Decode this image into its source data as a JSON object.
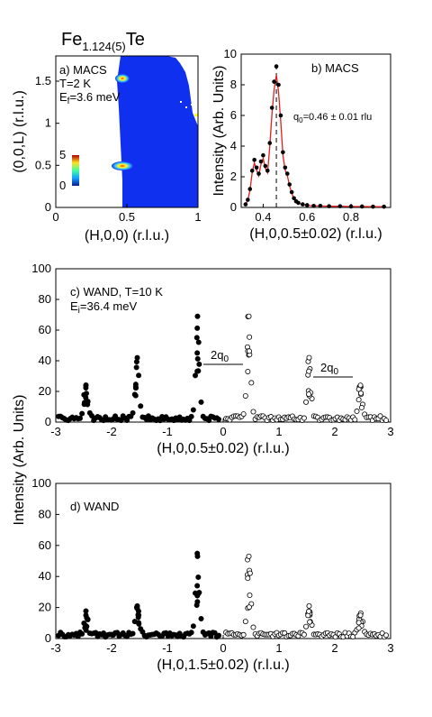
{
  "figure": {
    "title_main": "Fe",
    "title_sub": "1.124(5)",
    "title_tail": "Te",
    "shared_ylabel": "Intensity (Arb. Units)"
  },
  "panel_a": {
    "label": "a) MACS",
    "temp": "T=2 K",
    "ef_pre": "E",
    "ef_sub": "f",
    "ef_post": "=3.6 meV",
    "xlabel": "(H,0,0) (r.l.u.)",
    "ylabel": "(0,0,L) (r.l.u.)",
    "colorbar_max": "5",
    "colorbar_min": "0",
    "xticks": [
      "0",
      "0.5",
      "1"
    ],
    "yticks": [
      "0",
      "0.5",
      "1",
      "1.5"
    ],
    "colors": {
      "background": "#1030f0",
      "peak_outer": "#30c0ff",
      "peak_mid": "#ffff20",
      "peak_core": "#ff3010"
    }
  },
  "panel_b": {
    "label": "b) MACS",
    "q_pre": "q",
    "q_sub": "0",
    "q_post": "=0.46 ± 0.01 rlu",
    "xlabel": "(H,0,0.5±0.02) (r.l.u.)",
    "ylabel": "Intensity (Arb. Units)",
    "xticks": [
      "0.4",
      "0.6",
      "0.8"
    ],
    "yticks": [
      "0",
      "2",
      "4",
      "6",
      "8",
      "10"
    ],
    "fit_color": "#e02020"
  },
  "panel_c": {
    "label": "c) WAND, T=10 K",
    "ei_pre": "E",
    "ei_sub": "i",
    "ei_post": "=36.4 meV",
    "q_ann": "2q",
    "q_ann_sub": "0",
    "xlabel": "(H,0,0.5±0.02) (r.l.u.)",
    "xticks": [
      "-3",
      "-2",
      "-1",
      "0",
      "1",
      "2",
      "3"
    ],
    "yticks": [
      "0",
      "20",
      "40",
      "60",
      "80",
      "100"
    ]
  },
  "panel_d": {
    "label": "d) WAND",
    "xlabel": "(H,0,1.5±0.02) (r.l.u.)",
    "xticks": [
      "-3",
      "-2",
      "-1",
      "0",
      "1",
      "2",
      "3"
    ],
    "yticks": [
      "0",
      "20",
      "40",
      "60",
      "80",
      "100"
    ]
  },
  "chart_data": [
    {
      "type": "heatmap",
      "title": "a) MACS",
      "xlabel": "(H,0,0) (r.l.u.)",
      "ylabel": "(0,0,L) (r.l.u.)",
      "xlim": [
        0,
        1
      ],
      "ylim": [
        0,
        1.8
      ],
      "color_range": [
        0,
        5
      ],
      "peaks": [
        {
          "h": 0.46,
          "l": 0.5,
          "intensity": 5
        },
        {
          "h": 0.46,
          "l": 1.5,
          "intensity": 3
        }
      ]
    },
    {
      "type": "scatter",
      "title": "b) MACS",
      "xlabel": "(H,0,0.5±0.02) (r.l.u.)",
      "ylabel": "Intensity (Arb. Units)",
      "xlim": [
        0.3,
        0.98
      ],
      "ylim": [
        0,
        10
      ],
      "q0_line": 0.46,
      "x": [
        0.32,
        0.33,
        0.34,
        0.35,
        0.36,
        0.37,
        0.38,
        0.39,
        0.4,
        0.41,
        0.42,
        0.43,
        0.44,
        0.45,
        0.46,
        0.47,
        0.48,
        0.49,
        0.5,
        0.51,
        0.52,
        0.53,
        0.54,
        0.55,
        0.56,
        0.58,
        0.6,
        0.63,
        0.66,
        0.7,
        0.75,
        0.8,
        0.85,
        0.9,
        0.95
      ],
      "y": [
        0.2,
        0.5,
        1.2,
        2.4,
        3.1,
        2.6,
        2.2,
        3.0,
        3.4,
        2.7,
        2.4,
        4.2,
        6.5,
        8.2,
        9.2,
        8.0,
        6.0,
        3.6,
        2.6,
        2.2,
        1.5,
        1.0,
        0.6,
        0.4,
        0.3,
        0.2,
        0.15,
        0.1,
        0.1,
        0.08,
        0.08,
        0.06,
        0.06,
        0.05,
        0.05
      ]
    },
    {
      "type": "scatter",
      "title": "c) WAND, T=10 K",
      "xlabel": "(H,0,0.5±0.02) (r.l.u.)",
      "ylabel": "Intensity (Arb. Units)",
      "xlim": [
        -3,
        3
      ],
      "ylim": [
        0,
        100
      ],
      "series": [
        {
          "marker": "filled",
          "peaks": [
            {
              "x": -2.46,
              "height": 24
            },
            {
              "x": -1.54,
              "height": 42
            },
            {
              "x": -0.46,
              "height": 69
            }
          ]
        },
        {
          "marker": "open",
          "peaks": [
            {
              "x": 0.46,
              "height": 69
            },
            {
              "x": 1.54,
              "height": 42
            },
            {
              "x": 2.46,
              "height": 24
            }
          ]
        }
      ]
    },
    {
      "type": "scatter",
      "title": "d) WAND",
      "xlabel": "(H,0,1.5±0.02) (r.l.u.)",
      "ylabel": "Intensity (Arb. Units)",
      "xlim": [
        -3,
        3
      ],
      "ylim": [
        0,
        100
      ],
      "series": [
        {
          "marker": "filled",
          "peaks": [
            {
              "x": -2.46,
              "height": 15
            },
            {
              "x": -1.54,
              "height": 21
            },
            {
              "x": -0.46,
              "height": 53
            }
          ]
        },
        {
          "marker": "open",
          "peaks": [
            {
              "x": 0.46,
              "height": 53
            },
            {
              "x": 1.54,
              "height": 21
            },
            {
              "x": 2.46,
              "height": 15
            }
          ]
        }
      ]
    }
  ]
}
